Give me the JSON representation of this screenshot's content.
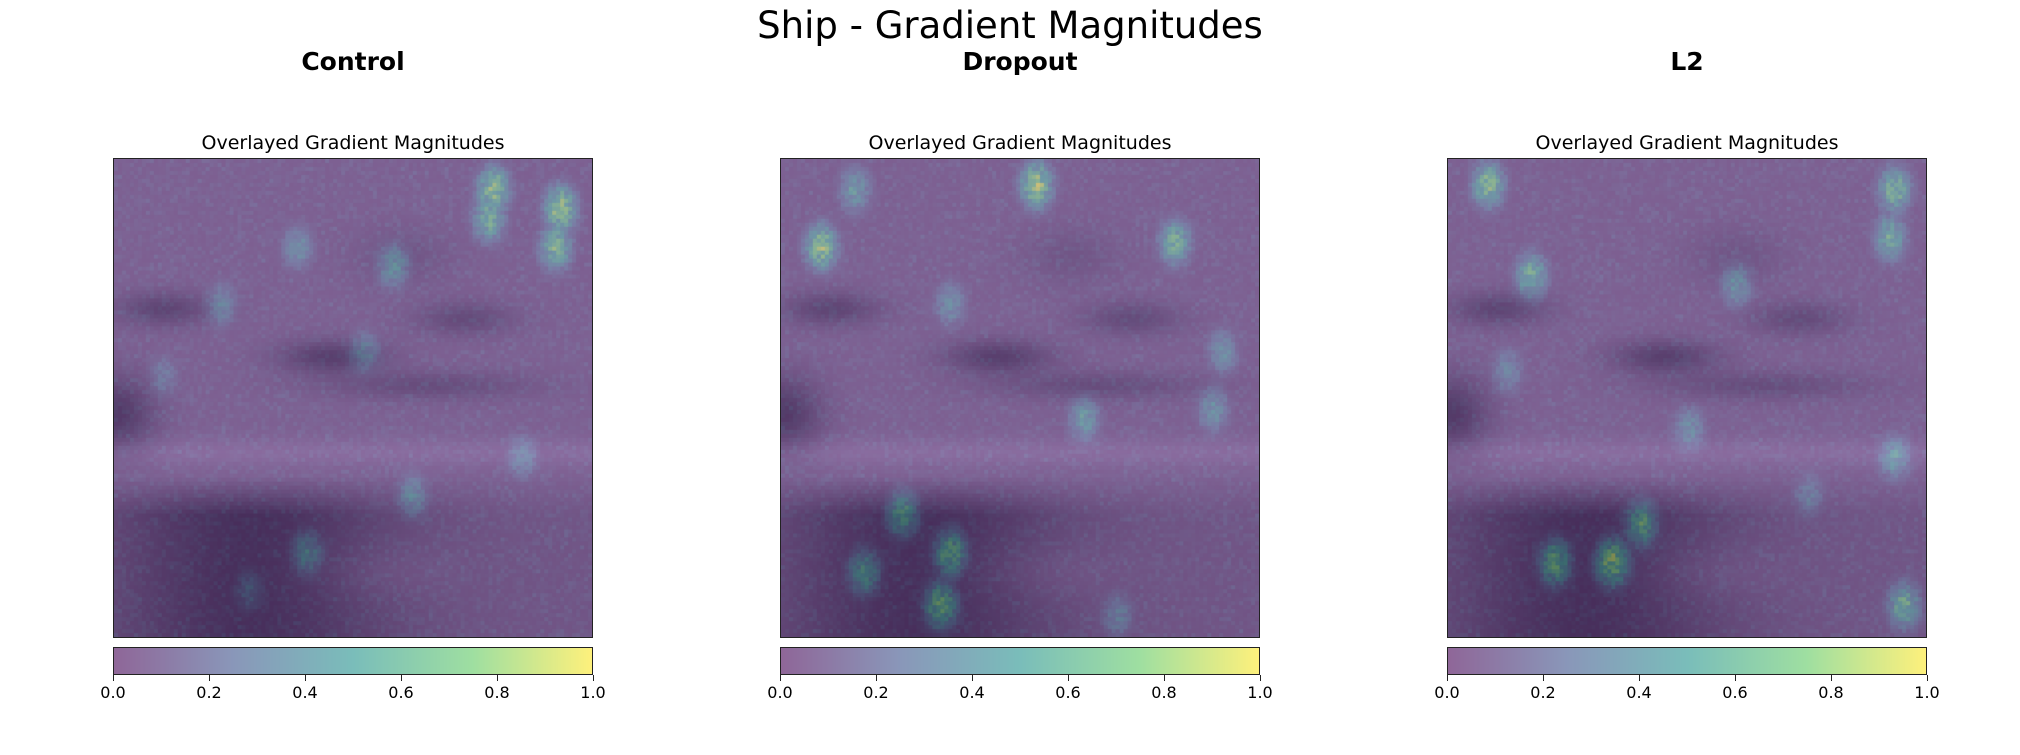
{
  "figure": {
    "title": "Ship - Gradient Magnitudes"
  },
  "colormap": [
    "#440154",
    "#3b528b",
    "#21918c",
    "#5ec962",
    "#fde725"
  ],
  "chart_data": [
    {
      "type": "heatmap",
      "panel_title": "Control",
      "title": "Overlayed Gradient Magnitudes",
      "colorbar": {
        "range": [
          0.0,
          1.0
        ],
        "ticks": [
          "0.0",
          "0.2",
          "0.4",
          "0.6",
          "0.8",
          "1.0"
        ]
      },
      "grid": false,
      "hotspots": [
        {
          "x": 0.79,
          "y": 0.06,
          "v": 0.95
        },
        {
          "x": 0.93,
          "y": 0.1,
          "v": 1.0
        },
        {
          "x": 0.92,
          "y": 0.18,
          "v": 0.85
        },
        {
          "x": 0.78,
          "y": 0.12,
          "v": 0.8
        },
        {
          "x": 0.58,
          "y": 0.22,
          "v": 0.6
        },
        {
          "x": 0.38,
          "y": 0.18,
          "v": 0.5
        },
        {
          "x": 0.22,
          "y": 0.3,
          "v": 0.45
        },
        {
          "x": 0.52,
          "y": 0.4,
          "v": 0.45
        },
        {
          "x": 0.62,
          "y": 0.7,
          "v": 0.5
        },
        {
          "x": 0.4,
          "y": 0.82,
          "v": 0.55
        },
        {
          "x": 0.85,
          "y": 0.62,
          "v": 0.45
        },
        {
          "x": 0.1,
          "y": 0.45,
          "v": 0.35
        },
        {
          "x": 0.28,
          "y": 0.9,
          "v": 0.35
        }
      ]
    },
    {
      "type": "heatmap",
      "panel_title": "Dropout",
      "title": "Overlayed Gradient Magnitudes",
      "colorbar": {
        "range": [
          0.0,
          1.0
        ],
        "ticks": [
          "0.0",
          "0.2",
          "0.4",
          "0.6",
          "0.8",
          "1.0"
        ]
      },
      "grid": false,
      "hotspots": [
        {
          "x": 0.53,
          "y": 0.05,
          "v": 1.0
        },
        {
          "x": 0.08,
          "y": 0.18,
          "v": 0.95
        },
        {
          "x": 0.82,
          "y": 0.17,
          "v": 0.8
        },
        {
          "x": 0.35,
          "y": 0.3,
          "v": 0.5
        },
        {
          "x": 0.25,
          "y": 0.74,
          "v": 0.75
        },
        {
          "x": 0.35,
          "y": 0.82,
          "v": 0.85
        },
        {
          "x": 0.17,
          "y": 0.86,
          "v": 0.7
        },
        {
          "x": 0.33,
          "y": 0.93,
          "v": 0.9
        },
        {
          "x": 0.63,
          "y": 0.54,
          "v": 0.6
        },
        {
          "x": 0.9,
          "y": 0.52,
          "v": 0.55
        },
        {
          "x": 0.7,
          "y": 0.95,
          "v": 0.45
        },
        {
          "x": 0.92,
          "y": 0.4,
          "v": 0.5
        },
        {
          "x": 0.15,
          "y": 0.06,
          "v": 0.6
        }
      ]
    },
    {
      "type": "heatmap",
      "panel_title": "L2",
      "title": "Overlayed Gradient Magnitudes",
      "colorbar": {
        "range": [
          0.0,
          1.0
        ],
        "ticks": [
          "0.0",
          "0.2",
          "0.4",
          "0.6",
          "0.8",
          "1.0"
        ]
      },
      "grid": false,
      "hotspots": [
        {
          "x": 0.08,
          "y": 0.05,
          "v": 0.9
        },
        {
          "x": 0.93,
          "y": 0.06,
          "v": 0.85
        },
        {
          "x": 0.17,
          "y": 0.24,
          "v": 0.8
        },
        {
          "x": 0.92,
          "y": 0.16,
          "v": 0.75
        },
        {
          "x": 0.6,
          "y": 0.26,
          "v": 0.55
        },
        {
          "x": 0.34,
          "y": 0.84,
          "v": 1.0
        },
        {
          "x": 0.22,
          "y": 0.84,
          "v": 0.85
        },
        {
          "x": 0.4,
          "y": 0.76,
          "v": 0.8
        },
        {
          "x": 0.5,
          "y": 0.56,
          "v": 0.5
        },
        {
          "x": 0.93,
          "y": 0.62,
          "v": 0.6
        },
        {
          "x": 0.95,
          "y": 0.93,
          "v": 0.8
        },
        {
          "x": 0.12,
          "y": 0.44,
          "v": 0.45
        },
        {
          "x": 0.75,
          "y": 0.7,
          "v": 0.4
        }
      ]
    }
  ]
}
